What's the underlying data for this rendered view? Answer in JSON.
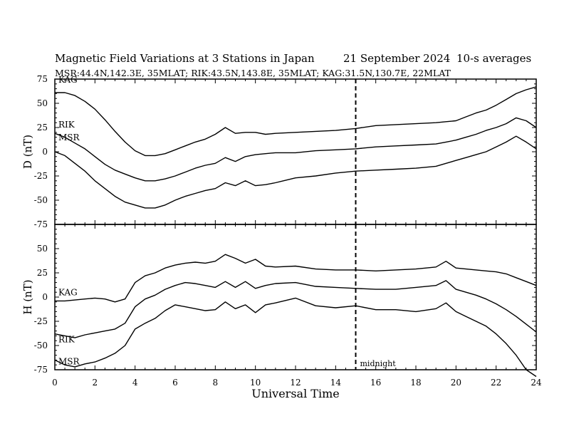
{
  "header": {
    "title": "Magnetic Field Variations at 3 Stations in Japan",
    "date": "21 September 2024",
    "averaging": "10-s averages",
    "stations_line": "MSR:44.4N,142.3E, 35MLAT;  RIK:43.5N,143.8E, 35MLAT;  KAG:31.5N,130.7E, 22MLAT"
  },
  "chart_data": [
    {
      "type": "line",
      "panel": "D",
      "ylabel": "D (nT)",
      "ylim": [
        -75,
        75
      ],
      "yticks": [
        -75,
        -50,
        -25,
        0,
        25,
        50,
        75
      ],
      "xlim": [
        0,
        24
      ],
      "series": [
        {
          "name": "KAG",
          "x": [
            0,
            0.5,
            1,
            1.5,
            2,
            2.5,
            3,
            3.5,
            4,
            4.5,
            5,
            5.5,
            6,
            6.5,
            7,
            7.5,
            8,
            8.5,
            9,
            9.5,
            10,
            10.5,
            11,
            12,
            13,
            14,
            15,
            16,
            17,
            18,
            19,
            19.5,
            20,
            20.5,
            21,
            21.5,
            22,
            22.5,
            23,
            23.5,
            24
          ],
          "y": [
            61,
            61,
            58,
            52,
            44,
            33,
            21,
            10,
            1,
            -4,
            -4,
            -2,
            2,
            6,
            10,
            13,
            18,
            25,
            19,
            20,
            20,
            18,
            19,
            20,
            21,
            22,
            24,
            27,
            28,
            29,
            30,
            31,
            32,
            36,
            40,
            43,
            48,
            54,
            60,
            64,
            67
          ]
        },
        {
          "name": "RIK",
          "x": [
            0,
            0.5,
            1,
            1.5,
            2,
            2.5,
            3,
            3.5,
            4,
            4.5,
            5,
            5.5,
            6,
            6.5,
            7,
            7.5,
            8,
            8.5,
            9,
            9.5,
            10,
            10.5,
            11,
            12,
            13,
            14,
            15,
            16,
            17,
            18,
            19,
            19.5,
            20,
            20.5,
            21,
            21.5,
            22,
            22.5,
            23,
            23.5,
            24
          ],
          "y": [
            19,
            15,
            9,
            3,
            -5,
            -13,
            -19,
            -23,
            -27,
            -30,
            -30,
            -28,
            -25,
            -21,
            -17,
            -14,
            -12,
            -6,
            -10,
            -5,
            -3,
            -2,
            -1,
            -1,
            1,
            2,
            3,
            5,
            6,
            7,
            8,
            10,
            12,
            15,
            18,
            22,
            25,
            29,
            35,
            32,
            25
          ]
        },
        {
          "name": "MSR",
          "x": [
            0,
            0.5,
            1,
            1.5,
            2,
            2.5,
            3,
            3.5,
            4,
            4.5,
            5,
            5.5,
            6,
            6.5,
            7,
            7.5,
            8,
            8.5,
            9,
            9.5,
            10,
            10.5,
            11,
            12,
            13,
            14,
            15,
            16,
            17,
            18,
            19,
            19.5,
            20,
            20.5,
            21,
            21.5,
            22,
            22.5,
            23,
            23.5,
            24
          ],
          "y": [
            0,
            -4,
            -12,
            -20,
            -30,
            -38,
            -46,
            -52,
            -55,
            -58,
            -58,
            -55,
            -50,
            -46,
            -43,
            -40,
            -38,
            -32,
            -35,
            -30,
            -35,
            -34,
            -32,
            -27,
            -25,
            -22,
            -20,
            -19,
            -18,
            -17,
            -15,
            -12,
            -9,
            -6,
            -3,
            0,
            5,
            10,
            16,
            10,
            3
          ]
        }
      ]
    },
    {
      "type": "line",
      "panel": "H",
      "ylabel": "H (nT)",
      "ylim": [
        -75,
        75
      ],
      "yticks": [
        -75,
        -50,
        -25,
        0,
        25,
        50,
        75
      ],
      "xlim": [
        0,
        24
      ],
      "xlabel": "Universal Time",
      "xticks": [
        0,
        2,
        4,
        6,
        8,
        10,
        12,
        14,
        16,
        18,
        20,
        22,
        24
      ],
      "series": [
        {
          "name": "KAG",
          "x": [
            0,
            0.5,
            1,
            1.5,
            2,
            2.5,
            3,
            3.5,
            4,
            4.5,
            5,
            5.5,
            6,
            6.5,
            7,
            7.5,
            8,
            8.5,
            9,
            9.5,
            10,
            10.5,
            11,
            12,
            13,
            14,
            15,
            16,
            17,
            18,
            19,
            19.5,
            20,
            20.5,
            21,
            21.5,
            22,
            22.5,
            23,
            23.5,
            24
          ],
          "y": [
            -4,
            -4,
            -3,
            -2,
            -1,
            -2,
            -5,
            -2,
            15,
            22,
            25,
            30,
            33,
            35,
            36,
            35,
            37,
            44,
            40,
            35,
            39,
            32,
            31,
            32,
            29,
            28,
            28,
            27,
            28,
            29,
            31,
            37,
            30,
            29,
            28,
            27,
            26,
            24,
            20,
            16,
            12
          ]
        },
        {
          "name": "RIK",
          "x": [
            0,
            0.5,
            1,
            1.5,
            2,
            2.5,
            3,
            3.5,
            4,
            4.5,
            5,
            5.5,
            6,
            6.5,
            7,
            7.5,
            8,
            8.5,
            9,
            9.5,
            10,
            10.5,
            11,
            12,
            13,
            14,
            15,
            16,
            17,
            18,
            19,
            19.5,
            20,
            20.5,
            21,
            21.5,
            22,
            22.5,
            23,
            23.5,
            24
          ],
          "y": [
            -38,
            -40,
            -42,
            -39,
            -37,
            -35,
            -33,
            -27,
            -10,
            -2,
            2,
            8,
            12,
            15,
            14,
            12,
            10,
            16,
            10,
            16,
            9,
            12,
            14,
            15,
            11,
            10,
            9,
            8,
            8,
            10,
            12,
            17,
            8,
            5,
            2,
            -2,
            -7,
            -13,
            -20,
            -28,
            -36
          ]
        },
        {
          "name": "MSR",
          "x": [
            0,
            0.5,
            1,
            1.5,
            2,
            2.5,
            3,
            3.5,
            4,
            4.5,
            5,
            5.5,
            6,
            6.5,
            7,
            7.5,
            8,
            8.5,
            9,
            9.5,
            10,
            10.5,
            11,
            12,
            13,
            14,
            15,
            16,
            17,
            18,
            19,
            19.5,
            20,
            20.5,
            21,
            21.5,
            22,
            22.5,
            23,
            23.5,
            24
          ],
          "y": [
            -65,
            -70,
            -72,
            -69,
            -67,
            -63,
            -58,
            -50,
            -33,
            -27,
            -22,
            -14,
            -8,
            -10,
            -12,
            -14,
            -13,
            -5,
            -12,
            -8,
            -16,
            -8,
            -6,
            -1,
            -9,
            -11,
            -9,
            -13,
            -13,
            -15,
            -12,
            -6,
            -15,
            -20,
            -25,
            -30,
            -38,
            -48,
            -60,
            -75,
            -82
          ]
        }
      ],
      "annotations": [
        {
          "text": "midnight"
        }
      ]
    }
  ],
  "midnight_ut": 15
}
